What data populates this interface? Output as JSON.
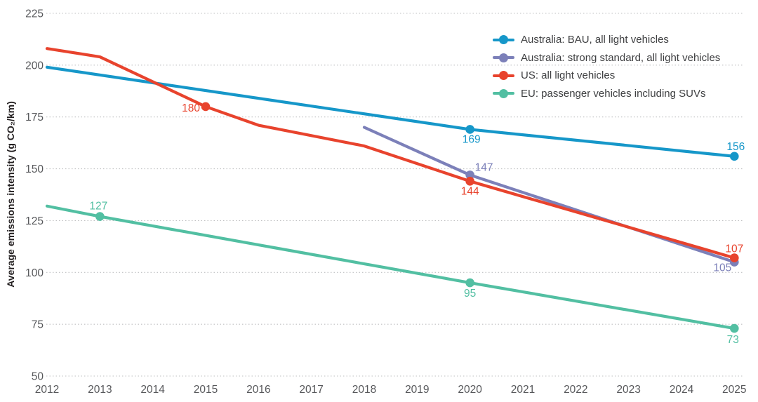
{
  "chart_data": {
    "type": "line",
    "title": "",
    "ylabel": "Average emissions intensity (g CO₂/km)",
    "xlabel": "",
    "xlim": [
      2012,
      2025
    ],
    "ylim": [
      50,
      225
    ],
    "x_ticks": [
      2012,
      2013,
      2014,
      2015,
      2016,
      2017,
      2018,
      2019,
      2020,
      2021,
      2022,
      2023,
      2024,
      2025
    ],
    "y_ticks": [
      225,
      200,
      175,
      150,
      125,
      100,
      75,
      50
    ],
    "grid": "horizontal-dotted",
    "grid_color": "#bfc0c2",
    "axis_tick_color": "#57585b",
    "legend_position": "top-right",
    "series": [
      {
        "name": "Australia: BAU, all light vehicles",
        "color": "#1697c9",
        "points": [
          [
            2012,
            199
          ],
          [
            2020,
            169
          ],
          [
            2025,
            156
          ]
        ],
        "markers": [
          [
            2020,
            169
          ],
          [
            2025,
            156
          ]
        ],
        "labels": [
          {
            "text": "169",
            "year": 2020,
            "value": 169,
            "dx": 2,
            "dy": 19,
            "anchor": "middle"
          },
          {
            "text": "156",
            "year": 2025,
            "value": 156,
            "dx": 2,
            "dy": -9,
            "anchor": "middle"
          }
        ]
      },
      {
        "name": "Australia: strong standard, all light vehicles",
        "color": "#7c80b9",
        "points": [
          [
            2018,
            170
          ],
          [
            2020,
            147
          ],
          [
            2025,
            105
          ]
        ],
        "markers": [
          [
            2020,
            147
          ],
          [
            2025,
            105
          ]
        ],
        "labels": [
          {
            "text": "147",
            "year": 2020,
            "value": 147,
            "dx": 7,
            "dy": -6,
            "anchor": "start"
          },
          {
            "text": "105",
            "year": 2025,
            "value": 105,
            "dx": -17,
            "dy": 13,
            "anchor": "middle"
          }
        ]
      },
      {
        "name": "US: all light vehicles",
        "color": "#e8432d",
        "points": [
          [
            2012,
            208
          ],
          [
            2013,
            204
          ],
          [
            2015,
            180
          ],
          [
            2016,
            171
          ],
          [
            2018,
            161
          ],
          [
            2020,
            144
          ],
          [
            2025,
            107
          ]
        ],
        "markers": [
          [
            2015,
            180
          ],
          [
            2020,
            144
          ],
          [
            2025,
            107
          ]
        ],
        "labels": [
          {
            "text": "180",
            "year": 2015,
            "value": 180,
            "dx": -8,
            "dy": 7,
            "anchor": "end"
          },
          {
            "text": "144",
            "year": 2020,
            "value": 144,
            "dx": 0,
            "dy": 19,
            "anchor": "middle"
          },
          {
            "text": "107",
            "year": 2025,
            "value": 107,
            "dx": 0,
            "dy": -8,
            "anchor": "middle"
          }
        ]
      },
      {
        "name": "EU: passenger vehicles including SUVs",
        "color": "#52bfa2",
        "points": [
          [
            2012,
            132
          ],
          [
            2013,
            127
          ],
          [
            2020,
            95
          ],
          [
            2025,
            73
          ]
        ],
        "markers": [
          [
            2013,
            127
          ],
          [
            2020,
            95
          ],
          [
            2025,
            73
          ]
        ],
        "labels": [
          {
            "text": "127",
            "year": 2013,
            "value": 127,
            "dx": -2,
            "dy": -10,
            "anchor": "middle"
          },
          {
            "text": "95",
            "year": 2020,
            "value": 95,
            "dx": 0,
            "dy": 20,
            "anchor": "middle"
          },
          {
            "text": "73",
            "year": 2025,
            "value": 73,
            "dx": -2,
            "dy": 21,
            "anchor": "middle"
          }
        ]
      }
    ]
  }
}
